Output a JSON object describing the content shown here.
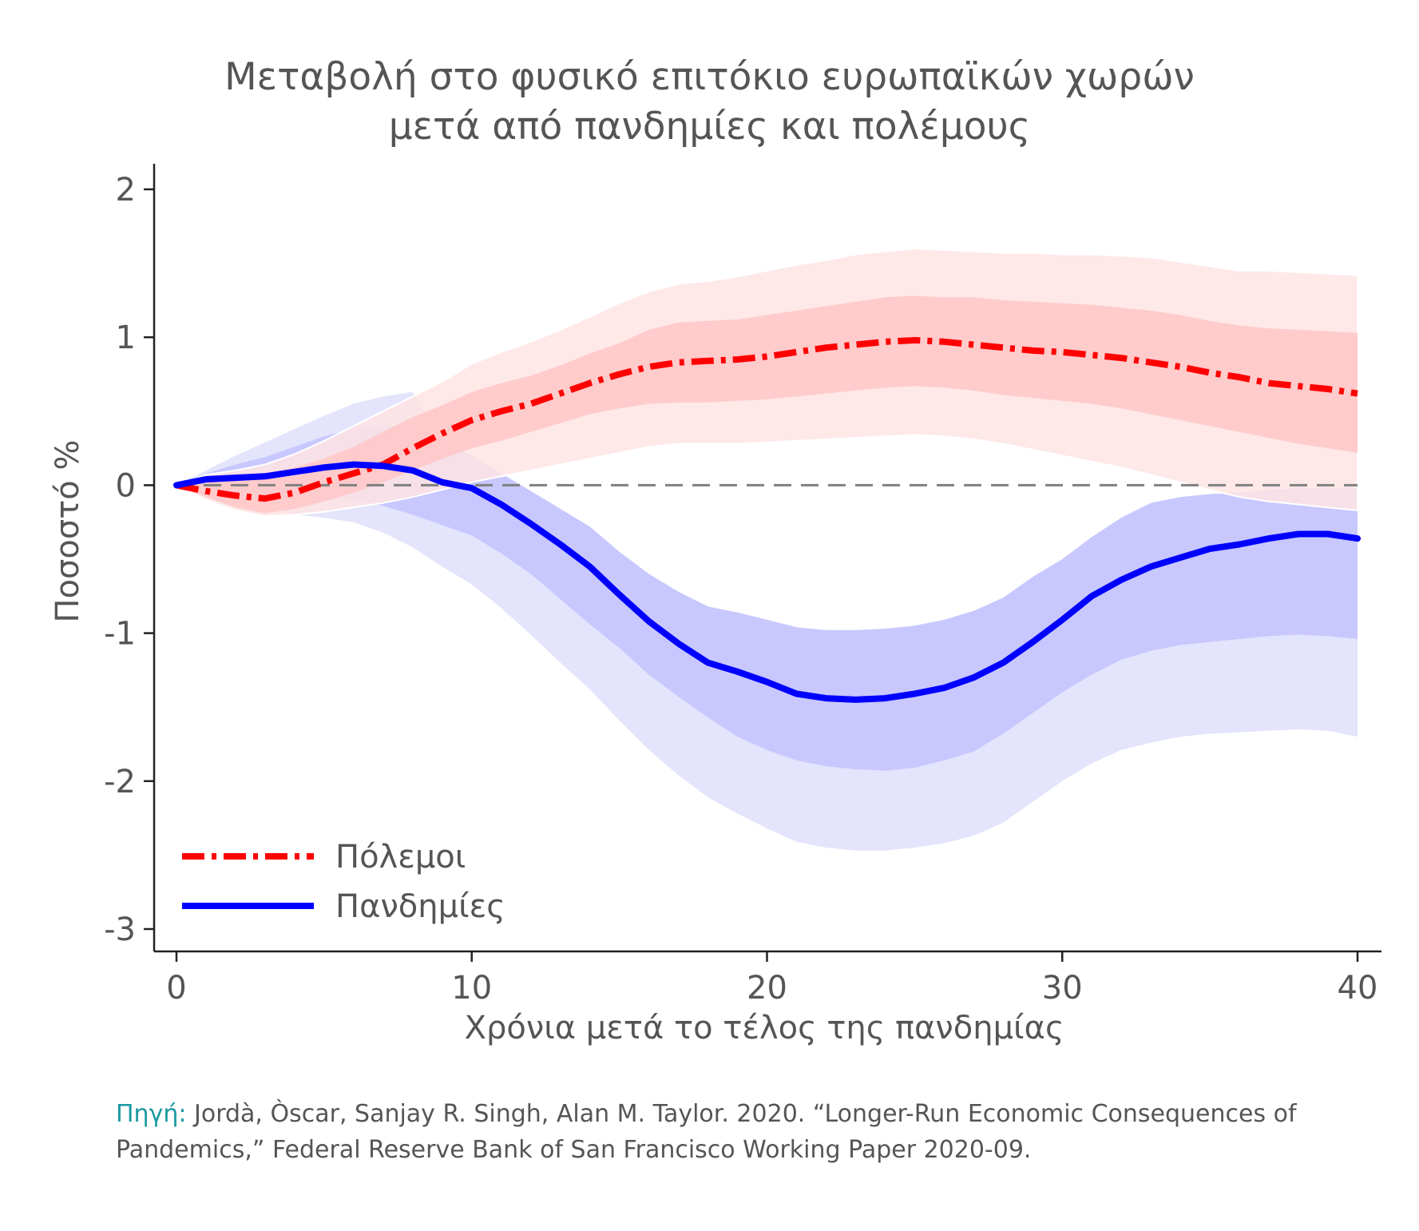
{
  "title_lines": [
    "Μεταβολή στο φυσικό επιτόκιο ευρωπαϊκών χωρών",
    "μετά από πανδημίες και πολέμους"
  ],
  "source": {
    "label": "Πηγή:",
    "text": " Jordà, Òscar, Sanjay R. Singh, Alan M. Taylor. 2020. “Longer-Run Economic Consequences of Pandemics,” Federal Reserve Bank of San Francisco Working Paper 2020-09."
  },
  "colors": {
    "wars": "#ff0000",
    "wars_band_inner": "#ffc8c8",
    "wars_band_outer": "#ffe4e4",
    "pandemics": "#0000ff",
    "pandemics_band_inner": "#c8c8ff",
    "pandemics_band_outer": "#e4e4fc",
    "zero_line": "#808080",
    "text": "#555555",
    "source_label": "#1a9aa0"
  },
  "chart_data": {
    "type": "line",
    "title": "Μεταβολή στο φυσικό επιτόκιο ευρωπαϊκών χωρών μετά από πανδημίες και πολέμους",
    "xlabel": "Χρόνια μετά το τέλος της πανδημίας",
    "ylabel": "Ποσοστό %",
    "xlim": [
      0,
      40
    ],
    "ylim": [
      -3.1,
      2.15
    ],
    "xticks": [
      0,
      10,
      20,
      30,
      40
    ],
    "yticks": [
      2,
      1,
      0,
      -1,
      -2,
      -3
    ],
    "reference_line": {
      "y": 0,
      "style": "dashed"
    },
    "legend_position": "bottom-left",
    "grid": false,
    "x": [
      0,
      1,
      2,
      3,
      4,
      5,
      6,
      7,
      8,
      9,
      10,
      11,
      12,
      13,
      14,
      15,
      16,
      17,
      18,
      19,
      20,
      21,
      22,
      23,
      24,
      25,
      26,
      27,
      28,
      29,
      30,
      31,
      32,
      33,
      34,
      35,
      36,
      37,
      38,
      39,
      40
    ],
    "series": [
      {
        "name": "Πόλεμοι",
        "style": "dash-dot",
        "values": [
          0,
          -0.04,
          -0.07,
          -0.09,
          -0.05,
          0.02,
          0.08,
          0.14,
          0.25,
          0.35,
          0.44,
          0.5,
          0.55,
          0.62,
          0.69,
          0.75,
          0.8,
          0.83,
          0.84,
          0.85,
          0.87,
          0.9,
          0.93,
          0.95,
          0.97,
          0.98,
          0.97,
          0.95,
          0.93,
          0.91,
          0.9,
          0.88,
          0.86,
          0.83,
          0.8,
          0.76,
          0.73,
          0.69,
          0.67,
          0.65,
          0.62
        ],
        "band_inner_upper": [
          0,
          0.04,
          0.06,
          0.08,
          0.12,
          0.18,
          0.26,
          0.36,
          0.46,
          0.54,
          0.63,
          0.69,
          0.74,
          0.81,
          0.89,
          0.96,
          1.05,
          1.1,
          1.11,
          1.12,
          1.15,
          1.18,
          1.21,
          1.24,
          1.27,
          1.28,
          1.27,
          1.27,
          1.25,
          1.24,
          1.23,
          1.22,
          1.2,
          1.18,
          1.15,
          1.11,
          1.08,
          1.06,
          1.05,
          1.04,
          1.03
        ],
        "band_inner_lower": [
          0,
          -0.08,
          -0.15,
          -0.19,
          -0.16,
          -0.11,
          -0.05,
          0.02,
          0.1,
          0.18,
          0.25,
          0.3,
          0.36,
          0.42,
          0.48,
          0.52,
          0.55,
          0.56,
          0.56,
          0.57,
          0.58,
          0.6,
          0.62,
          0.64,
          0.66,
          0.67,
          0.66,
          0.64,
          0.61,
          0.59,
          0.57,
          0.55,
          0.52,
          0.48,
          0.44,
          0.4,
          0.36,
          0.32,
          0.28,
          0.25,
          0.22
        ],
        "band_outer_upper": [
          0,
          0.07,
          0.1,
          0.14,
          0.21,
          0.3,
          0.4,
          0.5,
          0.6,
          0.7,
          0.82,
          0.9,
          0.97,
          1.05,
          1.14,
          1.23,
          1.31,
          1.36,
          1.38,
          1.41,
          1.45,
          1.49,
          1.52,
          1.56,
          1.58,
          1.6,
          1.59,
          1.58,
          1.57,
          1.57,
          1.56,
          1.56,
          1.55,
          1.54,
          1.51,
          1.48,
          1.45,
          1.45,
          1.44,
          1.43,
          1.42
        ],
        "band_outer_lower": [
          0,
          -0.1,
          -0.17,
          -0.21,
          -0.2,
          -0.18,
          -0.15,
          -0.12,
          -0.08,
          -0.03,
          0.02,
          0.06,
          0.1,
          0.14,
          0.18,
          0.22,
          0.26,
          0.28,
          0.28,
          0.28,
          0.29,
          0.3,
          0.31,
          0.32,
          0.33,
          0.34,
          0.33,
          0.31,
          0.28,
          0.24,
          0.2,
          0.16,
          0.12,
          0.07,
          0.02,
          -0.03,
          -0.08,
          -0.11,
          -0.13,
          -0.15,
          -0.17
        ]
      },
      {
        "name": "Πανδημίες",
        "style": "solid",
        "values": [
          0,
          0.04,
          0.05,
          0.06,
          0.09,
          0.12,
          0.14,
          0.13,
          0.1,
          0.02,
          -0.02,
          -0.13,
          -0.26,
          -0.4,
          -0.55,
          -0.74,
          -0.92,
          -1.07,
          -1.2,
          -1.26,
          -1.33,
          -1.41,
          -1.44,
          -1.45,
          -1.44,
          -1.41,
          -1.37,
          -1.3,
          -1.2,
          -1.06,
          -0.91,
          -0.75,
          -0.64,
          -0.55,
          -0.49,
          -0.43,
          -0.4,
          -0.36,
          -0.33,
          -0.33,
          -0.36
        ],
        "band_inner_upper": [
          0,
          0.08,
          0.14,
          0.19,
          0.26,
          0.33,
          0.38,
          0.4,
          0.4,
          0.3,
          0.2,
          0.08,
          -0.04,
          -0.16,
          -0.28,
          -0.45,
          -0.6,
          -0.72,
          -0.82,
          -0.86,
          -0.91,
          -0.96,
          -0.98,
          -0.98,
          -0.97,
          -0.95,
          -0.91,
          -0.85,
          -0.76,
          -0.62,
          -0.5,
          -0.35,
          -0.22,
          -0.12,
          -0.08,
          -0.06,
          -0.05,
          -0.03,
          -0.02,
          -0.02,
          -0.02
        ],
        "band_inner_lower": [
          0,
          -0.02,
          -0.05,
          -0.08,
          -0.1,
          -0.09,
          -0.1,
          -0.14,
          -0.2,
          -0.27,
          -0.34,
          -0.46,
          -0.6,
          -0.77,
          -0.94,
          -1.1,
          -1.28,
          -1.43,
          -1.57,
          -1.7,
          -1.79,
          -1.86,
          -1.9,
          -1.92,
          -1.93,
          -1.91,
          -1.86,
          -1.8,
          -1.68,
          -1.54,
          -1.4,
          -1.28,
          -1.18,
          -1.12,
          -1.08,
          -1.06,
          -1.04,
          -1.02,
          -1.01,
          -1.02,
          -1.04
        ],
        "band_outer_upper": [
          0,
          0.1,
          0.2,
          0.29,
          0.38,
          0.47,
          0.55,
          0.6,
          0.63,
          null,
          null,
          null,
          null,
          null,
          null,
          null,
          null,
          null,
          null,
          null,
          null,
          null,
          null,
          null,
          null,
          null,
          null,
          null,
          null,
          null,
          null,
          null,
          null,
          null,
          null,
          null,
          null,
          null,
          null,
          null,
          null
        ],
        "band_outer_lower": [
          0,
          -0.05,
          -0.1,
          -0.15,
          -0.2,
          -0.22,
          -0.25,
          -0.32,
          -0.42,
          -0.55,
          -0.67,
          -0.83,
          -1.01,
          -1.2,
          -1.38,
          -1.59,
          -1.79,
          -1.96,
          -2.11,
          -2.22,
          -2.32,
          -2.41,
          -2.45,
          -2.47,
          -2.47,
          -2.45,
          -2.42,
          -2.37,
          -2.28,
          -2.14,
          -2.0,
          -1.88,
          -1.79,
          -1.74,
          -1.7,
          -1.68,
          -1.67,
          -1.66,
          -1.65,
          -1.66,
          -1.7
        ]
      }
    ]
  }
}
